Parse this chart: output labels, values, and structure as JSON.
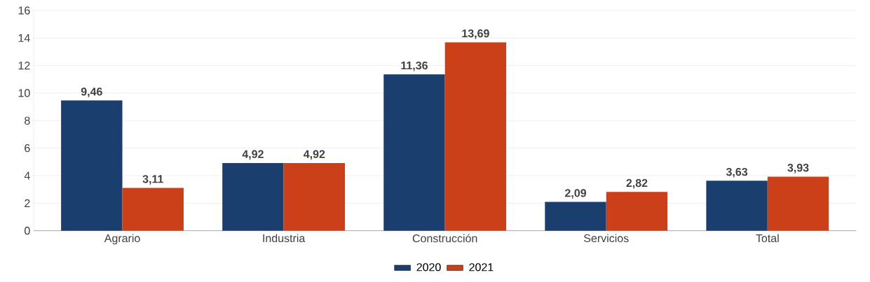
{
  "chart_data": {
    "type": "bar",
    "categories": [
      "Agrario",
      "Industria",
      "Construcción",
      "Servicios",
      "Total"
    ],
    "series": [
      {
        "name": "2020",
        "color": "#1a3f6e",
        "values": [
          9.46,
          4.92,
          11.36,
          2.09,
          3.63
        ],
        "value_labels": [
          "9,46",
          "4,92",
          "11,36",
          "2,09",
          "3,63"
        ]
      },
      {
        "name": "2021",
        "color": "#cc4019",
        "values": [
          3.11,
          4.92,
          13.69,
          2.82,
          3.93
        ],
        "value_labels": [
          "3,11",
          "4,92",
          "13,69",
          "2,82",
          "3,93"
        ]
      }
    ],
    "ylim": [
      0,
      16
    ],
    "yticks": [
      0,
      2,
      4,
      6,
      8,
      10,
      12,
      14,
      16
    ],
    "grid": "y",
    "legend": "bottom"
  }
}
